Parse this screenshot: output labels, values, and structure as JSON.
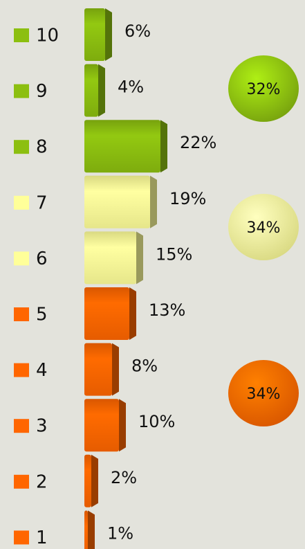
{
  "chart_data": {
    "type": "bar",
    "categories": [
      "10",
      "9",
      "8",
      "7",
      "6",
      "5",
      "4",
      "3",
      "2",
      "1"
    ],
    "values": [
      6,
      4,
      22,
      19,
      15,
      13,
      8,
      10,
      2,
      1
    ],
    "value_labels": [
      "6%",
      "4%",
      "22%",
      "19%",
      "15%",
      "13%",
      "8%",
      "10%",
      "2%",
      "1%"
    ],
    "colors": [
      "#8cbf10",
      "#8cbf10",
      "#8cbf10",
      "#ffff99",
      "#ffff99",
      "#ff6600",
      "#ff6600",
      "#ff6600",
      "#ff6600",
      "#ff6600"
    ],
    "groups": {
      "values": [
        32,
        34,
        34
      ],
      "value_labels": [
        "32%",
        "34%",
        "34%"
      ],
      "colors": [
        "#8cbf10",
        "#ffff99",
        "#ff6600"
      ]
    }
  }
}
